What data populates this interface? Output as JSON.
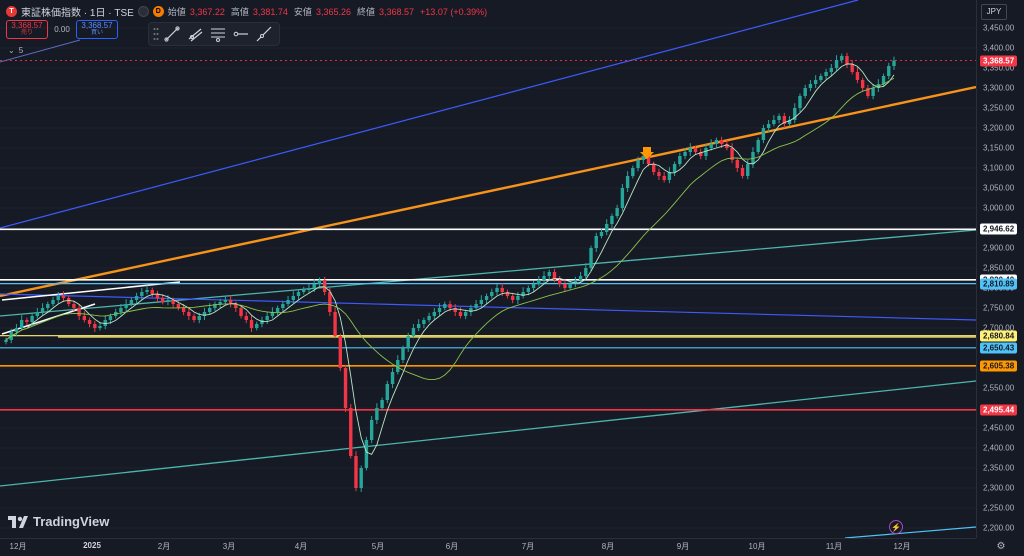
{
  "colors": {
    "background": "#161a25",
    "up": "#26a69a",
    "down": "#f23645",
    "ma_fast": "#b9e6c5",
    "ma_slow": "#8bc34a"
  },
  "legend": {
    "logo_icon": "tse-logo-icon",
    "symbol": "東証株価指数 · 1日 · TSE",
    "market_status_icon": "market-open-icon",
    "badge": "D",
    "open_label": "始値",
    "open": "3,367.22",
    "high_label": "高値",
    "high": "3,381.74",
    "low_label": "安値",
    "low": "3,365.26",
    "close_label": "終値",
    "close": "3,368.57",
    "change": "+13.07 (+0.39%)"
  },
  "trade": {
    "sell_price": "3,368.57",
    "sell_label": "売り",
    "spread": "0.00",
    "buy_price": "3,368.57",
    "buy_label": "買い"
  },
  "indicators": {
    "toggle_icon": "chevron-down-icon",
    "count": "5"
  },
  "toolbar": {
    "tools": [
      "drag-handle-icon",
      "trend-line-icon",
      "ray-icon",
      "parallel-channel-icon",
      "horizontal-ray-icon",
      "extended-line-icon"
    ]
  },
  "price_axis": {
    "currency": "JPY",
    "ticks": [
      "3,450.00",
      "3,400.00",
      "3,350.00",
      "3,300.00",
      "3,250.00",
      "3,200.00",
      "3,150.00",
      "3,100.00",
      "3,050.00",
      "3,000.00",
      "2,950.00",
      "2,900.00",
      "2,850.00",
      "2,800.00",
      "2,750.00",
      "2,700.00",
      "2,650.00",
      "2,600.00",
      "2,550.00",
      "2,500.00",
      "2,450.00",
      "2,400.00",
      "2,350.00",
      "2,300.00",
      "2,250.00",
      "2,200.00"
    ],
    "tick_values": [
      3450,
      3400,
      3350,
      3300,
      3250,
      3200,
      3150,
      3100,
      3050,
      3000,
      2950,
      2900,
      2850,
      2800,
      2750,
      2700,
      2650,
      2600,
      2550,
      2500,
      2450,
      2400,
      2350,
      2300,
      2250,
      2200
    ],
    "current_price": {
      "label": "3,368.57",
      "value": 3368.57,
      "color": "#f23645"
    },
    "levels": [
      {
        "label": "2,946.62",
        "value": 2946.62,
        "color": "#ffffff",
        "text_color": "#131722"
      },
      {
        "label": "2,820.40",
        "value": 2820.4,
        "color": "#ffffff",
        "text_color": "#131722"
      },
      {
        "label": "2,810.89",
        "value": 2810.89,
        "color": "#4fc3f7",
        "text_color": "#131722"
      },
      {
        "label": "2,680.84",
        "value": 2680.84,
        "color": "#fff176",
        "text_color": "#131722"
      },
      {
        "label": "2,650.43",
        "value": 2650.43,
        "color": "#4fc3f7",
        "text_color": "#131722"
      },
      {
        "label": "2,605.38",
        "value": 2605.38,
        "color": "#ff9800",
        "text_color": "#131722"
      },
      {
        "label": "2,495.44",
        "value": 2495.44,
        "color": "#f23645",
        "text_color": "#ffffff"
      }
    ]
  },
  "time_axis": {
    "ticks": [
      {
        "label": "12月",
        "bold": false
      },
      {
        "label": "2025",
        "bold": true
      },
      {
        "label": "2月",
        "bold": false
      },
      {
        "label": "3月",
        "bold": false
      },
      {
        "label": "4月",
        "bold": false
      },
      {
        "label": "5月",
        "bold": false
      },
      {
        "label": "6月",
        "bold": false
      },
      {
        "label": "7月",
        "bold": false
      },
      {
        "label": "8月",
        "bold": false
      },
      {
        "label": "9月",
        "bold": false
      },
      {
        "label": "10月",
        "bold": false
      },
      {
        "label": "11月",
        "bold": false
      },
      {
        "label": "12月",
        "bold": false
      }
    ]
  },
  "chart_data": {
    "type": "candlestick",
    "approx_closes": [
      2670,
      2690,
      2700,
      2720,
      2715,
      2730,
      2740,
      2750,
      2760,
      2770,
      2780,
      2775,
      2760,
      2750,
      2730,
      2720,
      2710,
      2700,
      2705,
      2720,
      2730,
      2740,
      2750,
      2760,
      2770,
      2780,
      2790,
      2795,
      2785,
      2775,
      2765,
      2770,
      2760,
      2750,
      2740,
      2730,
      2720,
      2730,
      2740,
      2750,
      2760,
      2765,
      2770,
      2760,
      2750,
      2730,
      2720,
      2700,
      2710,
      2720,
      2730,
      2740,
      2750,
      2760,
      2770,
      2780,
      2790,
      2795,
      2800,
      2810,
      2820,
      2790,
      2740,
      2680,
      2600,
      2500,
      2380,
      2300,
      2350,
      2420,
      2470,
      2500,
      2520,
      2560,
      2590,
      2620,
      2650,
      2680,
      2700,
      2710,
      2720,
      2730,
      2740,
      2750,
      2760,
      2750,
      2740,
      2730,
      2740,
      2750,
      2760,
      2770,
      2780,
      2790,
      2800,
      2790,
      2780,
      2770,
      2780,
      2790,
      2800,
      2810,
      2820,
      2830,
      2840,
      2820,
      2810,
      2800,
      2810,
      2820,
      2830,
      2850,
      2900,
      2930,
      2940,
      2960,
      2980,
      3000,
      3050,
      3080,
      3100,
      3120,
      3130,
      3110,
      3090,
      3080,
      3070,
      3090,
      3110,
      3130,
      3140,
      3150,
      3140,
      3130,
      3150,
      3160,
      3170,
      3160,
      3150,
      3120,
      3100,
      3080,
      3110,
      3140,
      3170,
      3200,
      3210,
      3220,
      3230,
      3210,
      3220,
      3250,
      3280,
      3300,
      3310,
      3320,
      3330,
      3340,
      3350,
      3370,
      3380,
      3360,
      3340,
      3320,
      3300,
      3280,
      3300,
      3310,
      3330,
      3355,
      3368.57
    ],
    "ylim": [
      2200,
      3460
    ]
  }
}
